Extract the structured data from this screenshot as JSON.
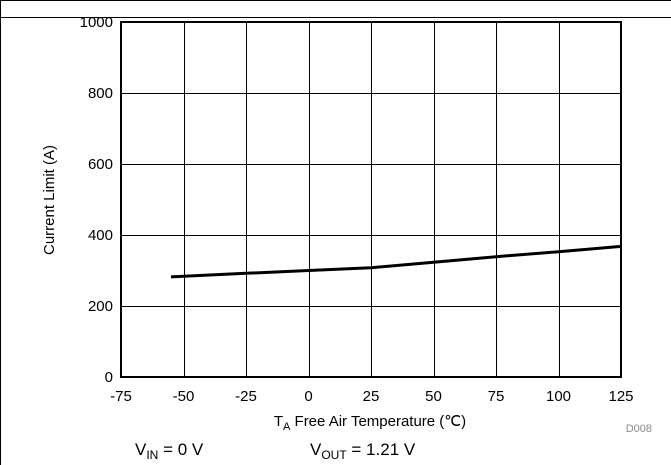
{
  "chart_data": {
    "type": "line",
    "title": "",
    "xlabel": {
      "symbol_main": "T",
      "symbol_sub": "A",
      "text": " Free Air Temperature (℃)"
    },
    "ylabel": "Current Limit (A)",
    "xlim": [
      -75,
      125
    ],
    "ylim": [
      0,
      1000
    ],
    "x_ticks": [
      -75,
      -50,
      -25,
      0,
      25,
      50,
      75,
      100,
      125
    ],
    "y_ticks": [
      0,
      200,
      400,
      600,
      800,
      1000
    ],
    "grid": true,
    "legend": "none",
    "series": [
      {
        "x": [
          -55,
          -25,
          0,
          25,
          50,
          75,
          100,
          125
        ],
        "y": [
          282,
          292,
          300,
          308,
          323,
          339,
          353,
          368
        ]
      }
    ],
    "figure_id": "D008",
    "line_color": "#000000",
    "grid_color": "#000000"
  },
  "conditions": {
    "vin": {
      "main": "V",
      "sub": "IN",
      "rest": " = 0 V"
    },
    "vout": {
      "main": "V",
      "sub": "OUT",
      "rest": " = 1.21 V"
    }
  }
}
